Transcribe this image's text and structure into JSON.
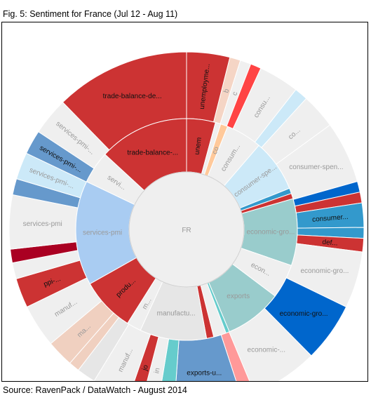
{
  "header": {
    "title": "Fig. 5: Sentiment for France (Jul 12 - Aug 11)"
  },
  "footer": {
    "source": "Source: RavenPack / DataWatch - August 2014"
  },
  "chart_data": {
    "type": "sunburst",
    "center": {
      "label": "FR",
      "color": "#efefef"
    },
    "inner_ring": [
      {
        "label": "unem",
        "value": 16,
        "color": "#cc3333"
      },
      {
        "label": "",
        "value": 3,
        "color": "#efefef"
      },
      {
        "label": "co",
        "value": 4,
        "color": "#ffc99a"
      },
      {
        "label": "consum...",
        "value": 20,
        "color": "#efefef"
      },
      {
        "label": "consumer-spe...",
        "value": 29,
        "color": "#cce9f8"
      },
      {
        "label": "",
        "value": 3,
        "color": "#3399cc"
      },
      {
        "label": "",
        "value": 3,
        "color": "#cc3333"
      },
      {
        "label": "economic-gro...",
        "value": 37,
        "color": "#99cccc"
      },
      {
        "label": "econ...",
        "value": 19,
        "color": "#efefef"
      },
      {
        "label": "exports",
        "value": 32,
        "color": "#99cccc"
      },
      {
        "label": "",
        "value": 2,
        "color": "#66cccc"
      },
      {
        "label": "",
        "value": 7,
        "color": "#efefef"
      },
      {
        "label": "",
        "value": 4,
        "color": "#cc3333"
      },
      {
        "label": "manufactu...",
        "value": 37,
        "color": "#e6e6e6"
      },
      {
        "label": "m...",
        "value": 8,
        "color": "#efefef"
      },
      {
        "label": "produ...",
        "value": 30,
        "color": "#cc3333"
      },
      {
        "label": "services-pmi",
        "value": 58,
        "color": "#a9ccf2"
      },
      {
        "label": "servi...",
        "value": 18,
        "color": "#efefef"
      },
      {
        "label": "trade-balance-...",
        "value": 50,
        "color": "#cc3333"
      }
    ],
    "outer_ring": [
      {
        "label": "unemployme...",
        "value": 16,
        "color": "#cc3333"
      },
      {
        "label": "b",
        "value": 4,
        "color": "#f5d5c5"
      },
      {
        "label": "c",
        "value": 4,
        "color": "#f0f0f0"
      },
      {
        "label": "",
        "value": 4,
        "color": "#ff4444"
      },
      {
        "label": "consu...",
        "value": 15,
        "color": "#efefef"
      },
      {
        "label": "",
        "value": 5,
        "color": "#cce9f8"
      },
      {
        "label": "co...",
        "value": 13,
        "color": "#efefef"
      },
      {
        "label": "consumer-spen...",
        "value": 23,
        "color": "#efefef"
      },
      {
        "label": "",
        "value": 4,
        "color": "#0066cc"
      },
      {
        "label": "",
        "value": 4,
        "color": "#cc3333"
      },
      {
        "label": "consumer...",
        "value": 9,
        "color": "#3399cc"
      },
      {
        "label": "",
        "value": 4,
        "color": "#3399cc"
      },
      {
        "label": "def...",
        "value": 5,
        "color": "#cc3333"
      },
      {
        "label": "economic-gro...",
        "value": 21,
        "color": "#efefef"
      },
      {
        "label": "economic-gro...",
        "value": 22,
        "color": "#0066cc"
      },
      {
        "label": "economic-...",
        "value": 25,
        "color": "#efefef"
      },
      {
        "label": "",
        "value": 5,
        "color": "#ff9999"
      },
      {
        "label": "exports-u...",
        "value": 25,
        "color": "#6699cc"
      },
      {
        "label": "",
        "value": 6,
        "color": "#66cccc"
      },
      {
        "label": "in",
        "value": 6,
        "color": "#efefef"
      },
      {
        "label": "jo",
        "value": 5,
        "color": "#cc3333"
      },
      {
        "label": "manuf...",
        "value": 14,
        "color": "#efefef"
      },
      {
        "label": "",
        "value": 7,
        "color": "#e6e6e6"
      },
      {
        "label": "",
        "value": 4,
        "color": "#f0d0c0"
      },
      {
        "label": "ma...",
        "value": 10,
        "color": "#f0d0c0"
      },
      {
        "label": "manuf...",
        "value": 16,
        "color": "#efefef"
      },
      {
        "label": "ppi-...",
        "value": 11,
        "color": "#cc3333"
      },
      {
        "label": "",
        "value": 6,
        "color": "#efefef"
      },
      {
        "label": "",
        "value": 5,
        "color": "#aa0022"
      },
      {
        "label": "services-pmi",
        "value": 20,
        "color": "#efefef"
      },
      {
        "label": "",
        "value": 6,
        "color": "#6699cc"
      },
      {
        "label": "services-pmi-...",
        "value": 10,
        "color": "#cce9f8"
      },
      {
        "label": "services-pmi-...",
        "value": 9,
        "color": "#6699cc"
      },
      {
        "label": "services-pmi-...",
        "value": 14,
        "color": "#efefef"
      },
      {
        "label": "trade-balance-de...",
        "value": 50,
        "color": "#cc3333"
      }
    ]
  }
}
